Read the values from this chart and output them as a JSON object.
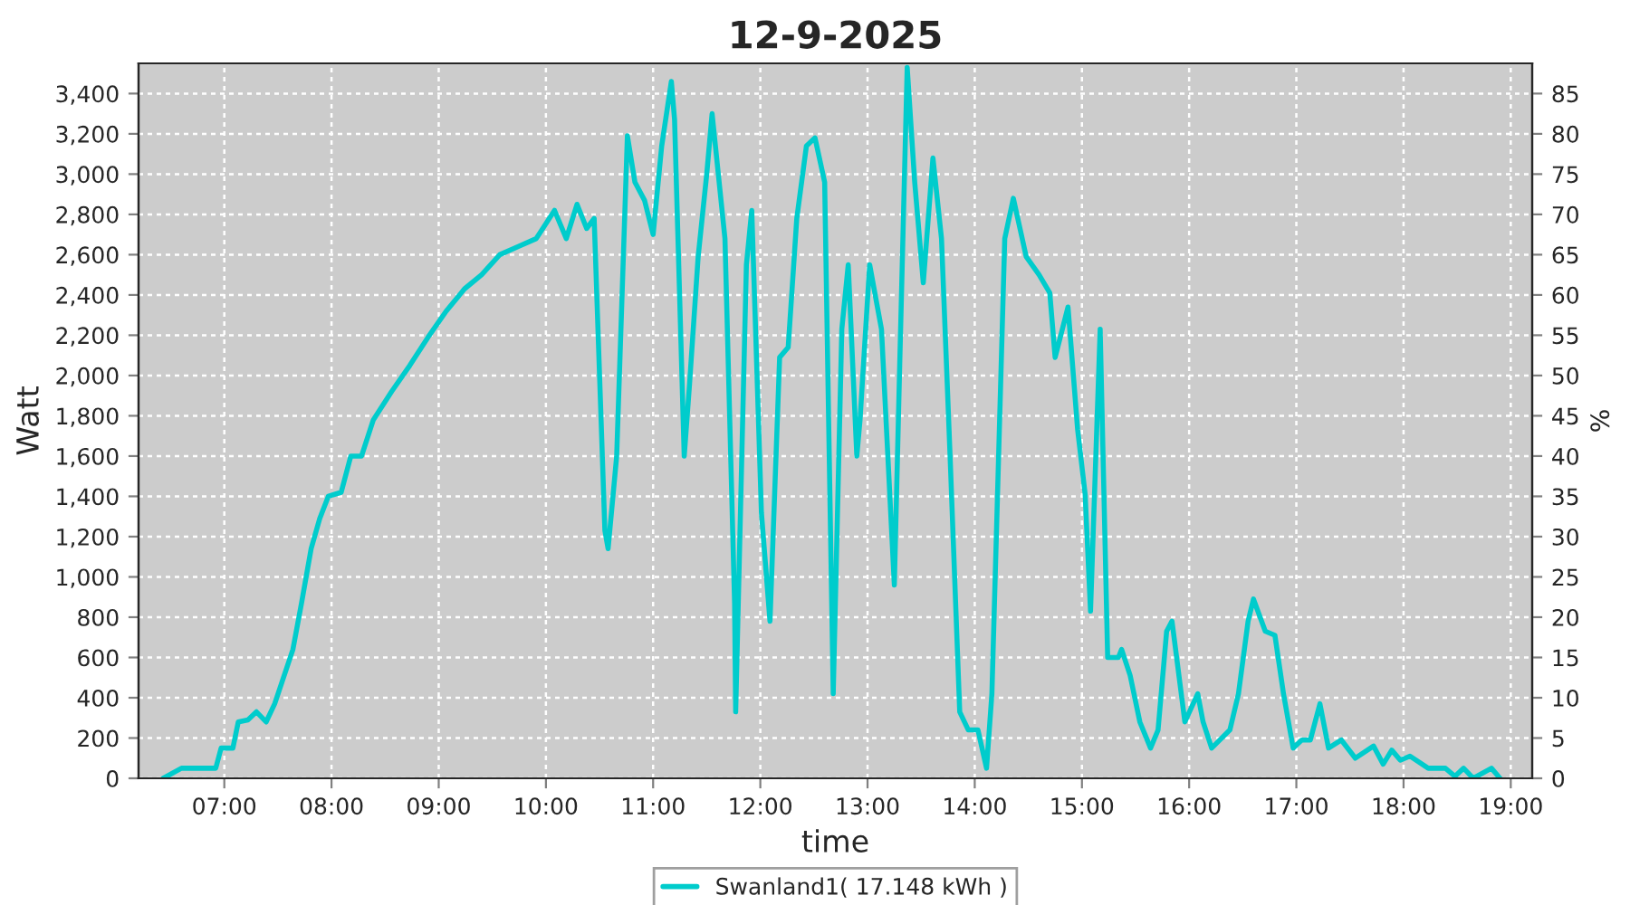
{
  "chart_data": {
    "type": "line",
    "title": "12-9-2025",
    "xlabel": "time",
    "ylabel": "Watt",
    "y2label": "%",
    "series": [
      {
        "name": "Swanland1( 17.148 kWh )",
        "color": "#00cccc",
        "x": [
          6.43,
          6.6,
          6.8,
          6.92,
          6.97,
          7.08,
          7.13,
          7.22,
          7.3,
          7.39,
          7.47,
          7.64,
          7.72,
          7.81,
          7.89,
          7.97,
          8.09,
          8.18,
          8.28,
          8.39,
          8.56,
          8.73,
          8.9,
          9.07,
          9.24,
          9.4,
          9.57,
          9.74,
          9.91,
          10.08,
          10.19,
          10.29,
          10.38,
          10.45,
          10.55,
          10.58,
          10.66,
          10.76,
          10.83,
          10.92,
          11.0,
          11.08,
          11.17,
          11.2,
          11.29,
          11.34,
          11.42,
          11.5,
          11.55,
          11.67,
          11.76,
          11.77,
          11.87,
          11.92,
          12.01,
          12.09,
          12.18,
          12.26,
          12.34,
          12.43,
          12.51,
          12.6,
          12.68,
          12.76,
          12.82,
          12.9,
          12.93,
          13.02,
          13.13,
          13.25,
          13.3,
          13.37,
          13.44,
          13.52,
          13.61,
          13.69,
          13.77,
          13.86,
          13.94,
          14.03,
          14.11,
          14.16,
          14.28,
          14.36,
          14.48,
          14.6,
          14.7,
          14.75,
          14.87,
          14.96,
          15.03,
          15.08,
          15.17,
          15.24,
          15.34,
          15.37,
          15.45,
          15.54,
          15.64,
          15.71,
          15.79,
          15.84,
          15.96,
          16.08,
          16.13,
          16.21,
          16.38,
          16.46,
          16.55,
          16.6,
          16.71,
          16.8,
          16.88,
          16.97,
          17.05,
          17.13,
          17.22,
          17.3,
          17.42,
          17.55,
          17.72,
          17.81,
          17.89,
          17.97,
          18.06,
          18.23,
          18.39,
          18.48,
          18.56,
          18.65,
          18.82,
          18.9
        ],
        "values": [
          0,
          50,
          50,
          50,
          150,
          150,
          280,
          290,
          330,
          280,
          370,
          640,
          870,
          1140,
          1290,
          1400,
          1420,
          1600,
          1600,
          1780,
          1920,
          2050,
          2190,
          2320,
          2430,
          2500,
          2600,
          2640,
          2680,
          2820,
          2680,
          2850,
          2730,
          2780,
          1230,
          1140,
          1600,
          3190,
          2960,
          2870,
          2700,
          3140,
          3460,
          3270,
          1600,
          1960,
          2590,
          3000,
          3300,
          2680,
          870,
          330,
          2550,
          2820,
          1320,
          780,
          2090,
          2140,
          2780,
          3140,
          3180,
          2960,
          420,
          2230,
          2550,
          1600,
          1780,
          2550,
          2230,
          960,
          2050,
          3530,
          2960,
          2460,
          3080,
          2680,
          1600,
          330,
          240,
          240,
          50,
          420,
          2680,
          2880,
          2590,
          2500,
          2410,
          2090,
          2340,
          1730,
          1410,
          830,
          2230,
          600,
          600,
          640,
          510,
          280,
          150,
          240,
          730,
          780,
          280,
          420,
          280,
          150,
          240,
          420,
          780,
          890,
          730,
          710,
          420,
          150,
          190,
          190,
          370,
          150,
          190,
          100,
          160,
          70,
          140,
          90,
          110,
          50,
          50,
          10,
          50,
          0,
          50,
          0
        ]
      }
    ],
    "xlim": [
      6.2,
      19.2
    ],
    "xticks": [
      {
        "value": 7,
        "label": "07:00"
      },
      {
        "value": 8,
        "label": "08:00"
      },
      {
        "value": 9,
        "label": "09:00"
      },
      {
        "value": 10,
        "label": "10:00"
      },
      {
        "value": 11,
        "label": "11:00"
      },
      {
        "value": 12,
        "label": "12:00"
      },
      {
        "value": 13,
        "label": "13:00"
      },
      {
        "value": 14,
        "label": "14:00"
      },
      {
        "value": 15,
        "label": "15:00"
      },
      {
        "value": 16,
        "label": "16:00"
      },
      {
        "value": 17,
        "label": "17:00"
      },
      {
        "value": 18,
        "label": "18:00"
      },
      {
        "value": 19,
        "label": "19:00"
      }
    ],
    "ylim": [
      0,
      3550
    ],
    "yticks": [
      0,
      200,
      400,
      600,
      800,
      {
        "value": 1000,
        "label": "1,000"
      },
      {
        "value": 1200,
        "label": "1,200"
      },
      {
        "value": 1400,
        "label": "1,400"
      },
      {
        "value": 1600,
        "label": "1,600"
      },
      {
        "value": 1800,
        "label": "1,800"
      },
      {
        "value": 2000,
        "label": "2,000"
      },
      {
        "value": 2200,
        "label": "2,200"
      },
      {
        "value": 2400,
        "label": "2,400"
      },
      {
        "value": 2600,
        "label": "2,600"
      },
      {
        "value": 2800,
        "label": "2,800"
      },
      {
        "value": 3000,
        "label": "3,000"
      },
      {
        "value": 3200,
        "label": "3,200"
      },
      {
        "value": 3400,
        "label": "3,400"
      }
    ],
    "y2lim": [
      0,
      88.75
    ],
    "y2ticks": [
      0,
      5,
      10,
      15,
      20,
      25,
      30,
      35,
      40,
      45,
      50,
      55,
      60,
      65,
      70,
      75,
      80,
      85
    ],
    "grid": true,
    "legend": "bottom",
    "marker": "none",
    "line_style": "solid"
  }
}
